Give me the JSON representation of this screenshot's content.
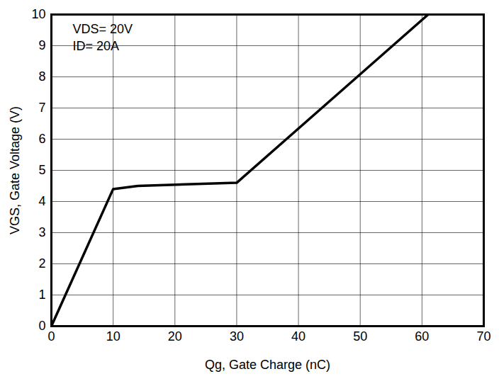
{
  "chart_data": {
    "type": "line",
    "x_label": "Qg, Gate Charge (nC)",
    "y_label": "VGS, Gate Voltage (V)",
    "annotations": [
      "VDS= 20V",
      "ID= 20A"
    ],
    "x": [
      0,
      10,
      14,
      30,
      61
    ],
    "values": [
      0,
      4.4,
      4.5,
      4.6,
      10
    ],
    "color": "#000000",
    "xlim": [
      0,
      70
    ],
    "xticks": [
      0,
      10,
      20,
      30,
      40,
      50,
      60,
      70
    ],
    "ylim": [
      0,
      10
    ],
    "yticks": [
      0,
      1,
      2,
      3,
      4,
      5,
      6,
      7,
      8,
      9,
      10
    ],
    "grid": true
  }
}
